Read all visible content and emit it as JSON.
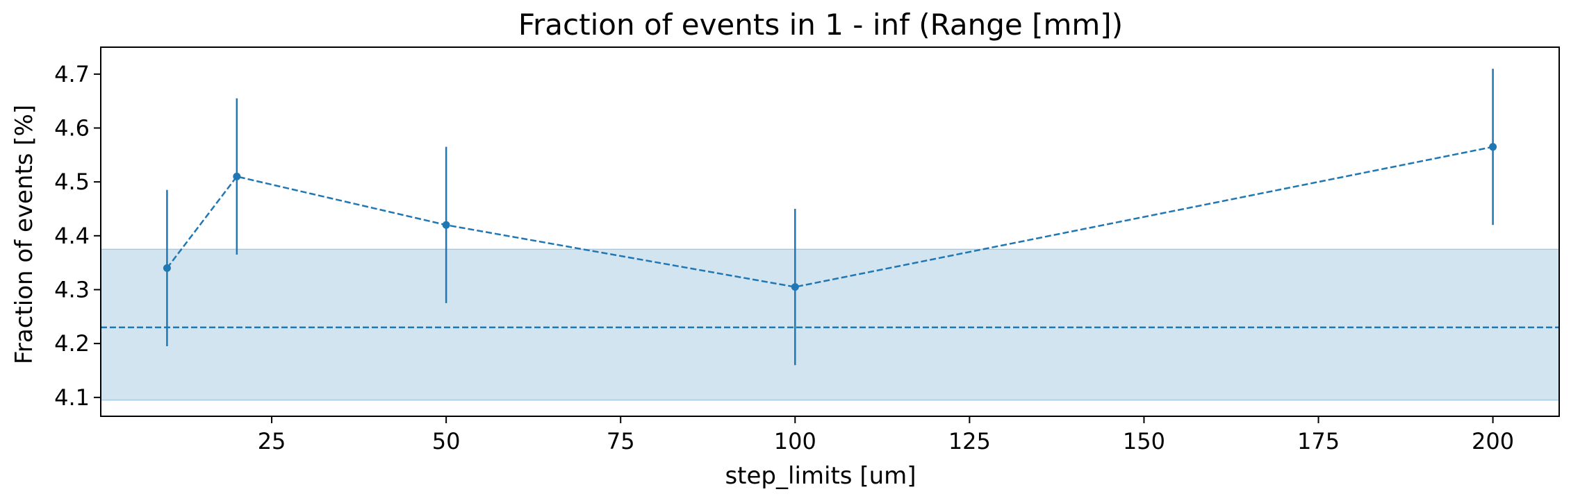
{
  "chart_data": {
    "type": "line",
    "title": "Fraction of events in 1 - inf (Range [mm])",
    "xlabel": "step_limits [um]",
    "ylabel": "Fraction of events [%]",
    "xlim": [
      0.5,
      209.5
    ],
    "ylim": [
      4.065,
      4.75
    ],
    "xticks": [
      25,
      50,
      75,
      100,
      125,
      150,
      175,
      200
    ],
    "yticks": [
      4.1,
      4.2,
      4.3,
      4.4,
      4.5,
      4.6,
      4.7
    ],
    "grid": false,
    "series": [
      {
        "x": [
          10,
          20,
          50,
          100,
          200
        ],
        "y": [
          4.34,
          4.51,
          4.42,
          4.305,
          4.565
        ],
        "yerr": [
          0.145,
          0.145,
          0.145,
          0.145,
          0.145
        ],
        "line_style": "dashed",
        "marker": "circle"
      }
    ],
    "reference_line": {
      "y": 4.23,
      "line_style": "dashed"
    },
    "reference_band": {
      "y_low": 4.095,
      "y_high": 4.375
    },
    "colors": {
      "series": "#1f77b4",
      "band": "#1f77b4",
      "axes": "#000000"
    }
  }
}
